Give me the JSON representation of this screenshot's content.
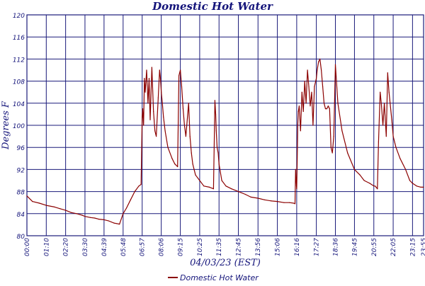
{
  "chart_data": {
    "type": "line",
    "title": "Domestic Hot Water",
    "xlabel": "04/03/23 (EST)",
    "ylabel": "Degrees F",
    "ylim": [
      80,
      120
    ],
    "yticks": [
      80,
      84,
      88,
      92,
      96,
      100,
      104,
      108,
      112,
      116,
      120
    ],
    "xticks": [
      "00:00",
      "01:10",
      "02:20",
      "03:30",
      "04:39",
      "05:48",
      "06:57",
      "08:06",
      "09:15",
      "10:25",
      "11:35",
      "12:45",
      "13:56",
      "15:06",
      "16:16",
      "17:27",
      "18:36",
      "19:45",
      "20:55",
      "22:05",
      "23:15",
      "23:55"
    ],
    "grid": true,
    "legend_position": "bottom",
    "colors": {
      "series": "#8b0000",
      "grid": "#1a1a7a",
      "text": "#14147a"
    },
    "series": [
      {
        "name": "Domestic Hot Water",
        "x": [
          "00:00",
          "00:20",
          "00:45",
          "01:10",
          "01:40",
          "02:00",
          "02:20",
          "02:40",
          "03:00",
          "03:20",
          "03:30",
          "03:50",
          "04:05",
          "04:20",
          "04:39",
          "04:55",
          "05:05",
          "05:15",
          "05:25",
          "05:35",
          "05:48",
          "06:00",
          "06:15",
          "06:30",
          "06:45",
          "06:53",
          "06:57",
          "06:59",
          "07:02",
          "07:05",
          "07:08",
          "07:13",
          "07:18",
          "07:22",
          "07:26",
          "07:32",
          "07:38",
          "07:43",
          "07:48",
          "07:55",
          "08:00",
          "08:03",
          "08:06",
          "08:10",
          "08:14",
          "08:20",
          "08:30",
          "08:45",
          "08:55",
          "09:05",
          "09:10",
          "09:15",
          "09:20",
          "09:25",
          "09:30",
          "09:35",
          "09:45",
          "09:50",
          "09:55",
          "10:00",
          "10:10",
          "10:25",
          "10:40",
          "11:00",
          "11:15",
          "11:20",
          "11:23",
          "11:25",
          "11:28",
          "11:32",
          "11:35",
          "11:45",
          "12:00",
          "12:20",
          "12:45",
          "13:10",
          "13:30",
          "13:56",
          "14:20",
          "14:45",
          "15:06",
          "15:30",
          "15:50",
          "16:05",
          "16:10",
          "16:12",
          "16:15",
          "16:16",
          "16:20",
          "16:22",
          "16:25",
          "16:30",
          "16:35",
          "16:40",
          "16:45",
          "16:50",
          "16:55",
          "17:00",
          "17:05",
          "17:10",
          "17:15",
          "17:20",
          "17:27",
          "17:30",
          "17:35",
          "17:40",
          "17:45",
          "17:50",
          "17:55",
          "18:00",
          "18:05",
          "18:10",
          "18:15",
          "18:20",
          "18:25",
          "18:30",
          "18:33",
          "18:36",
          "18:45",
          "19:00",
          "19:20",
          "19:45",
          "20:05",
          "20:20",
          "20:40",
          "20:55",
          "21:00",
          "21:03",
          "21:08",
          "21:12",
          "21:18",
          "21:22",
          "21:28",
          "21:33",
          "21:40",
          "21:45",
          "21:50",
          "22:00",
          "22:05",
          "22:15",
          "22:30",
          "22:50",
          "23:05",
          "23:15",
          "23:30",
          "23:45",
          "23:55"
        ],
        "values": [
          87.2,
          86.2,
          85.9,
          85.5,
          85.2,
          84.9,
          84.6,
          84.2,
          84.0,
          83.7,
          83.5,
          83.3,
          83.2,
          83.0,
          82.9,
          82.7,
          82.5,
          82.3,
          82.2,
          82.1,
          84.0,
          85.0,
          86.5,
          88.0,
          89.0,
          89.3,
          101.5,
          103.0,
          100.0,
          108.5,
          106.0,
          110.0,
          104.0,
          108.5,
          101.0,
          110.5,
          102.5,
          99.0,
          98.0,
          105.0,
          110.0,
          108.5,
          106.0,
          104.0,
          101.5,
          99.0,
          96.0,
          94.0,
          93.0,
          92.5,
          109.0,
          110.0,
          107.0,
          103.0,
          100.0,
          98.0,
          104.0,
          98.0,
          95.0,
          93.0,
          91.0,
          90.0,
          89.0,
          88.8,
          88.5,
          104.5,
          102.0,
          99.0,
          96.0,
          95.0,
          93.0,
          90.0,
          89.0,
          88.5,
          88.0,
          87.5,
          87.0,
          86.8,
          86.5,
          86.3,
          86.2,
          86.0,
          86.0,
          85.9,
          85.8,
          92.0,
          89.0,
          88.5,
          100.0,
          102.5,
          103.5,
          99.0,
          106.0,
          102.5,
          108.0,
          104.0,
          110.0,
          107.0,
          103.5,
          106.0,
          100.0,
          107.0,
          108.5,
          110.0,
          111.5,
          112.0,
          110.0,
          107.0,
          104.0,
          103.0,
          103.0,
          103.5,
          103.0,
          96.0,
          95.0,
          98.0,
          104.0,
          111.0,
          104.0,
          99.0,
          95.0,
          92.0,
          91.0,
          90.0,
          89.5,
          89.0,
          89.0,
          88.8,
          88.5,
          97.0,
          106.0,
          104.0,
          100.0,
          104.0,
          98.0,
          109.5,
          106.0,
          101.0,
          98.0,
          96.0,
          94.0,
          92.0,
          90.0,
          89.5,
          89.0,
          88.8,
          88.8
        ]
      }
    ]
  }
}
